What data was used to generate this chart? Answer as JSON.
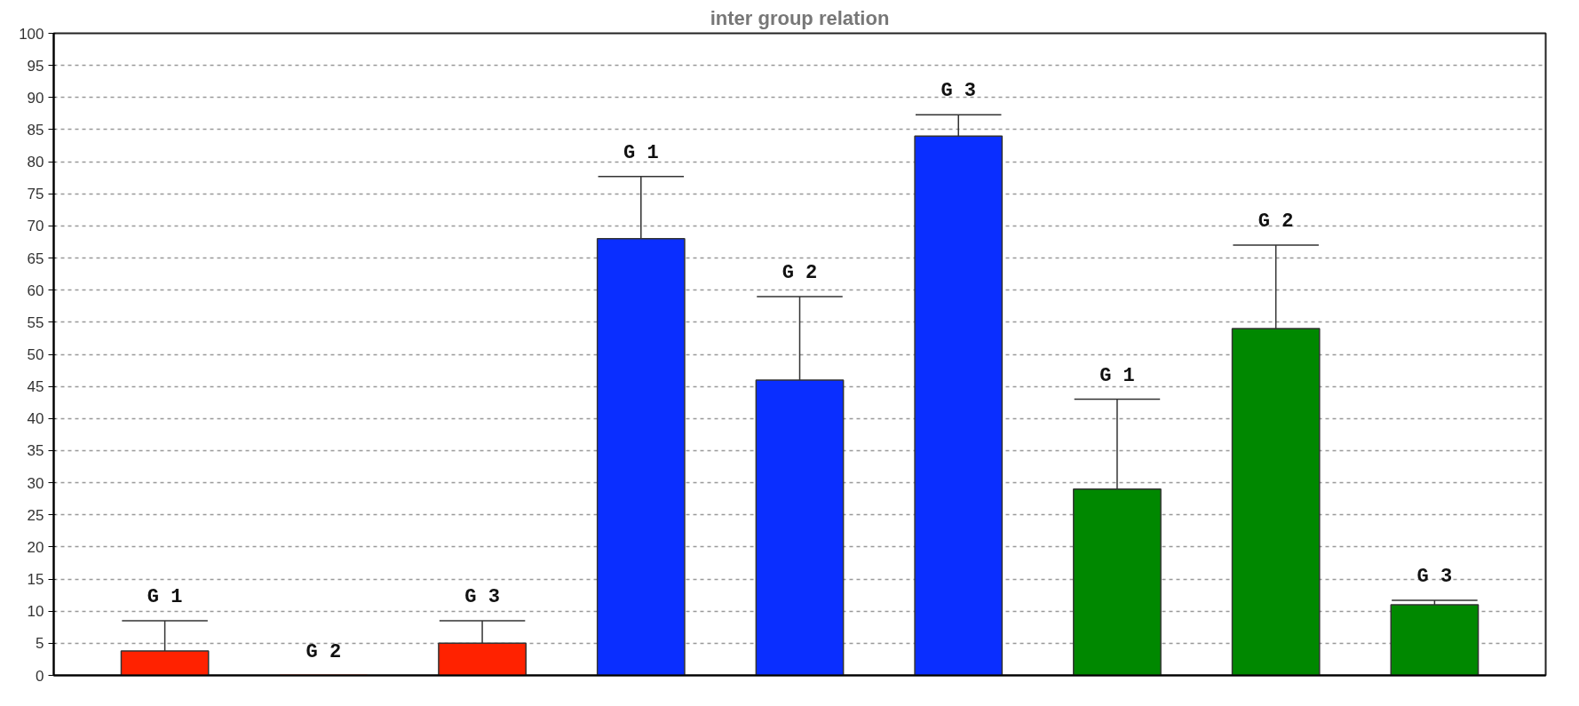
{
  "chart_data": {
    "type": "bar",
    "title": "inter group relation",
    "categories": [
      "G 1",
      "G 2",
      "G 3",
      "G 1",
      "G 2",
      "G 3",
      "G 1",
      "G 2",
      "G 3"
    ],
    "values": [
      3.8,
      0,
      5,
      68,
      46,
      84,
      29,
      54,
      11
    ],
    "colors": [
      "#ff2200",
      "#ff2200",
      "#ff2200",
      "#0a2eff",
      "#0a2eff",
      "#0a2eff",
      "#008800",
      "#008800",
      "#008800"
    ],
    "errors": [
      [
        3.8,
        8.5
      ],
      null,
      [
        5,
        8.5
      ],
      [
        68,
        77.7
      ],
      [
        46,
        59
      ],
      [
        84,
        87.3
      ],
      [
        29,
        43
      ],
      [
        54,
        67
      ],
      [
        11,
        11.7
      ]
    ],
    "ylim": [
      0,
      100
    ],
    "yticks": [
      0,
      5,
      10,
      15,
      20,
      25,
      30,
      35,
      40,
      45,
      50,
      55,
      60,
      65,
      70,
      75,
      80,
      85,
      90,
      95,
      100
    ],
    "grid": "y",
    "tick_labels": "y"
  }
}
